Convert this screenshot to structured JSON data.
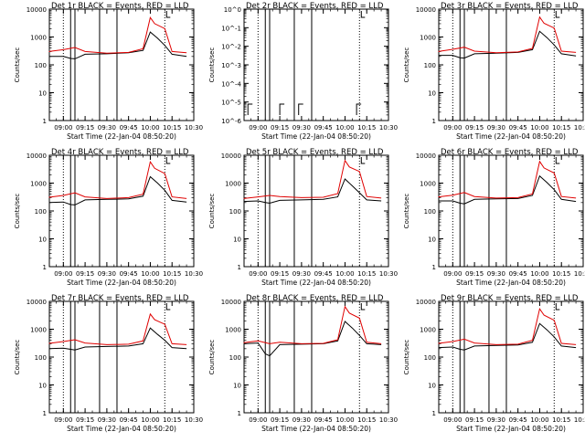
{
  "figure": {
    "event_color": "#000000",
    "lld_color": "#e00000",
    "ylabel": "Counts/sec",
    "xlabel": "Start Time (22-Jan-04 08:50:20)",
    "time_ticks": [
      "09:00",
      "09:15",
      "09:30",
      "09:45",
      "10:00",
      "10:15",
      "10:30"
    ],
    "log_ticks": [
      "1",
      "10",
      "100",
      "1000",
      "10000"
    ],
    "log_ticks_tiny": [
      "10^0",
      "10^-1",
      "10^-2",
      "10^-3",
      "10^-4",
      "10^-5",
      "10^-6"
    ]
  },
  "chart_data": [
    {
      "type": "line",
      "title": "Det 1r BLACK = Events, RED = LLD",
      "ylabel": "Counts/sec",
      "xlabel": "Start Time (22-Jan-04 08:50:20)",
      "ylim": [
        1,
        10000
      ],
      "yscale": "log",
      "series": [
        {
          "name": "Events",
          "x": [
            "08:50",
            "09:00",
            "09:05",
            "09:08",
            "09:15",
            "09:30",
            "09:45",
            "09:55",
            "10:00",
            "10:05",
            "10:10",
            "10:15",
            "10:25"
          ],
          "values": [
            200,
            200,
            170,
            165,
            240,
            250,
            270,
            330,
            1500,
            900,
            500,
            240,
            200
          ]
        },
        {
          "name": "LLD",
          "x": [
            "08:50",
            "09:00",
            "09:08",
            "09:15",
            "09:30",
            "09:45",
            "09:55",
            "10:00",
            "10:03",
            "10:10",
            "10:15",
            "10:25"
          ],
          "values": [
            300,
            350,
            420,
            300,
            260,
            280,
            380,
            5000,
            3000,
            2000,
            300,
            270
          ]
        }
      ]
    },
    {
      "type": "line",
      "title": "Det 2r BLACK = Events, RED = LLD",
      "ylabel": "Counts/sec",
      "xlabel": "Start Time (22-Jan-04 08:50:20)",
      "ylim": [
        1e-06,
        1
      ],
      "yscale": "log",
      "series": []
    },
    {
      "type": "line",
      "title": "Det 3r BLACK = Events, RED = LLD",
      "ylabel": "Counts/sec",
      "xlabel": "Start Time (22-Jan-04 08:50:20)",
      "ylim": [
        1,
        10000
      ],
      "yscale": "log",
      "series": [
        {
          "name": "Events",
          "x": [
            "08:50",
            "09:00",
            "09:05",
            "09:08",
            "09:15",
            "09:30",
            "09:45",
            "09:55",
            "10:00",
            "10:05",
            "10:10",
            "10:15",
            "10:25"
          ],
          "values": [
            220,
            220,
            180,
            175,
            250,
            260,
            280,
            350,
            1600,
            950,
            520,
            250,
            210
          ]
        },
        {
          "name": "LLD",
          "x": [
            "08:50",
            "09:00",
            "09:08",
            "09:15",
            "09:30",
            "09:45",
            "09:55",
            "10:00",
            "10:03",
            "10:10",
            "10:15",
            "10:25"
          ],
          "values": [
            300,
            360,
            430,
            310,
            270,
            290,
            390,
            5200,
            3100,
            2100,
            310,
            280
          ]
        }
      ]
    },
    {
      "type": "line",
      "title": "Det 4r BLACK = Events, RED = LLD",
      "ylabel": "Counts/sec",
      "xlabel": "Start Time (22-Jan-04 08:50:20)",
      "ylim": [
        1,
        10000
      ],
      "yscale": "log",
      "series": [
        {
          "name": "Events",
          "x": [
            "08:50",
            "09:00",
            "09:05",
            "09:08",
            "09:15",
            "09:30",
            "09:45",
            "09:55",
            "10:00",
            "10:05",
            "10:10",
            "10:15",
            "10:25"
          ],
          "values": [
            200,
            210,
            170,
            165,
            250,
            260,
            270,
            340,
            1700,
            1000,
            550,
            240,
            210
          ]
        },
        {
          "name": "LLD",
          "x": [
            "08:50",
            "09:00",
            "09:08",
            "09:15",
            "09:30",
            "09:45",
            "09:55",
            "10:00",
            "10:03",
            "10:10",
            "10:15",
            "10:25"
          ],
          "values": [
            310,
            360,
            450,
            320,
            280,
            300,
            400,
            5800,
            3400,
            2200,
            320,
            280
          ]
        }
      ]
    },
    {
      "type": "line",
      "title": "Det 5r BLACK = Events, RED = LLD",
      "ylabel": "Counts/sec",
      "xlabel": "Start Time (22-Jan-04 08:50:20)",
      "ylim": [
        1,
        10000
      ],
      "yscale": "log",
      "series": [
        {
          "name": "Events",
          "x": [
            "08:50",
            "09:00",
            "09:05",
            "09:08",
            "09:15",
            "09:30",
            "09:45",
            "09:55",
            "10:00",
            "10:05",
            "10:10",
            "10:15",
            "10:25"
          ],
          "values": [
            220,
            230,
            200,
            190,
            240,
            250,
            260,
            320,
            1400,
            800,
            450,
            250,
            230
          ]
        },
        {
          "name": "LLD",
          "x": [
            "08:50",
            "09:00",
            "09:08",
            "09:15",
            "09:30",
            "09:45",
            "09:55",
            "10:00",
            "10:03",
            "10:10",
            "10:15",
            "10:25"
          ],
          "values": [
            280,
            320,
            360,
            330,
            300,
            310,
            420,
            6500,
            3800,
            2600,
            330,
            290
          ]
        }
      ]
    },
    {
      "type": "line",
      "title": "Det 6r BLACK = Events, RED = LLD",
      "ylabel": "Counts/sec",
      "xlabel": "Start Time (22-Jan-04 08:50:20)",
      "ylim": [
        1,
        10000
      ],
      "yscale": "log",
      "series": [
        {
          "name": "Events",
          "x": [
            "08:50",
            "09:00",
            "09:05",
            "09:08",
            "09:15",
            "09:30",
            "09:45",
            "09:55",
            "10:00",
            "10:05",
            "10:10",
            "10:15",
            "10:25"
          ],
          "values": [
            230,
            230,
            190,
            180,
            260,
            270,
            280,
            360,
            1800,
            1050,
            580,
            260,
            220
          ]
        },
        {
          "name": "LLD",
          "x": [
            "08:50",
            "09:00",
            "09:08",
            "09:15",
            "09:30",
            "09:45",
            "09:55",
            "10:00",
            "10:03",
            "10:10",
            "10:15",
            "10:25"
          ],
          "values": [
            320,
            370,
            460,
            330,
            290,
            300,
            410,
            6000,
            3500,
            2300,
            330,
            290
          ]
        }
      ]
    },
    {
      "type": "line",
      "title": "Det 7r BLACK = Events, RED = LLD",
      "ylabel": "Counts/sec",
      "xlabel": "Start Time (22-Jan-04 08:50:20)",
      "ylim": [
        1,
        10000
      ],
      "yscale": "log",
      "series": [
        {
          "name": "Events",
          "x": [
            "08:50",
            "09:00",
            "09:05",
            "09:08",
            "09:15",
            "09:30",
            "09:45",
            "09:55",
            "10:00",
            "10:05",
            "10:10",
            "10:15",
            "10:25"
          ],
          "values": [
            200,
            210,
            190,
            180,
            230,
            240,
            250,
            300,
            1100,
            650,
            400,
            220,
            200
          ]
        },
        {
          "name": "LLD",
          "x": [
            "08:50",
            "09:00",
            "09:08",
            "09:15",
            "09:30",
            "09:45",
            "09:55",
            "10:00",
            "10:03",
            "10:10",
            "10:15",
            "10:25"
          ],
          "values": [
            310,
            360,
            420,
            320,
            280,
            290,
            380,
            3500,
            2200,
            1500,
            300,
            280
          ]
        }
      ]
    },
    {
      "type": "line",
      "title": "Det 8r BLACK = Events, RED = LLD",
      "ylabel": "Counts/sec",
      "xlabel": "Start Time (22-Jan-04 08:50:20)",
      "ylim": [
        1,
        10000
      ],
      "yscale": "log",
      "series": [
        {
          "name": "Events",
          "x": [
            "08:50",
            "09:00",
            "09:05",
            "09:08",
            "09:15",
            "09:30",
            "09:45",
            "09:55",
            "10:00",
            "10:05",
            "10:10",
            "10:15",
            "10:25"
          ],
          "values": [
            300,
            320,
            130,
            110,
            280,
            290,
            300,
            380,
            1900,
            1100,
            600,
            300,
            280
          ]
        },
        {
          "name": "LLD",
          "x": [
            "08:50",
            "09:00",
            "09:08",
            "09:15",
            "09:30",
            "09:45",
            "09:55",
            "10:00",
            "10:03",
            "10:10",
            "10:15",
            "10:25"
          ],
          "values": [
            330,
            380,
            300,
            340,
            300,
            310,
            420,
            6500,
            3800,
            2500,
            340,
            300
          ]
        }
      ]
    },
    {
      "type": "line",
      "title": "Det 9r BLACK = Events, RED = LLD",
      "ylabel": "Counts/sec",
      "xlabel": "Start Time (22-Jan-04 08:50:20)",
      "ylim": [
        1,
        10000
      ],
      "yscale": "log",
      "series": [
        {
          "name": "Events",
          "x": [
            "08:50",
            "09:00",
            "09:05",
            "09:08",
            "09:15",
            "09:30",
            "09:45",
            "09:55",
            "10:00",
            "10:05",
            "10:10",
            "10:15",
            "10:25"
          ],
          "values": [
            220,
            230,
            190,
            180,
            250,
            260,
            270,
            340,
            1600,
            950,
            530,
            250,
            220
          ]
        },
        {
          "name": "LLD",
          "x": [
            "08:50",
            "09:00",
            "09:08",
            "09:15",
            "09:30",
            "09:45",
            "09:55",
            "10:00",
            "10:03",
            "10:10",
            "10:15",
            "10:25"
          ],
          "values": [
            310,
            360,
            440,
            320,
            280,
            290,
            400,
            5400,
            3200,
            2100,
            310,
            280
          ]
        }
      ]
    }
  ]
}
